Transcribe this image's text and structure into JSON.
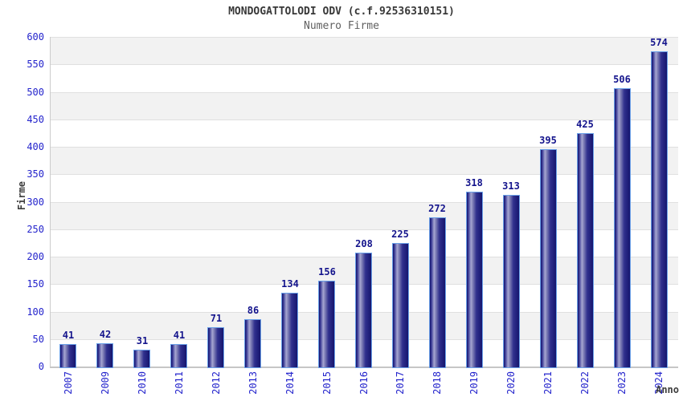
{
  "chart_data": {
    "type": "bar",
    "title": "MONDOGATTOLODI ODV (c.f.92536310151)",
    "subtitle": "Numero Firme",
    "xlabel": "Anno",
    "ylabel": "Firme",
    "categories": [
      "2007",
      "2009",
      "2010",
      "2011",
      "2012",
      "2013",
      "2014",
      "2015",
      "2016",
      "2017",
      "2018",
      "2019",
      "2020",
      "2021",
      "2022",
      "2023",
      "2024"
    ],
    "values": [
      41,
      42,
      31,
      41,
      71,
      86,
      134,
      156,
      208,
      225,
      272,
      318,
      313,
      395,
      425,
      506,
      574
    ],
    "yticks": [
      0,
      50,
      100,
      150,
      200,
      250,
      300,
      350,
      400,
      450,
      500,
      550,
      600
    ],
    "ylim": [
      0,
      600
    ],
    "grid": true,
    "legend": "none",
    "band_fill": "alternating",
    "colors": {
      "bar_body_dark": "#15156e",
      "bar_body_mid": "#31318e",
      "bar_body_highlight": "#a6a6d2",
      "bar_body_shade": "#7c7cb4",
      "bar_border": "#6aa0e8",
      "value_label": "#14148c",
      "axis_tick_label": "#2424cc",
      "axis_title": "#3d3d3d",
      "chart_title": "#383838",
      "chart_subtitle": "#606060",
      "band_gray": "#f2f2f2",
      "band_white": "#ffffff",
      "gridline": "#e0e0e0",
      "axis_line": "#c6c6c6"
    }
  }
}
